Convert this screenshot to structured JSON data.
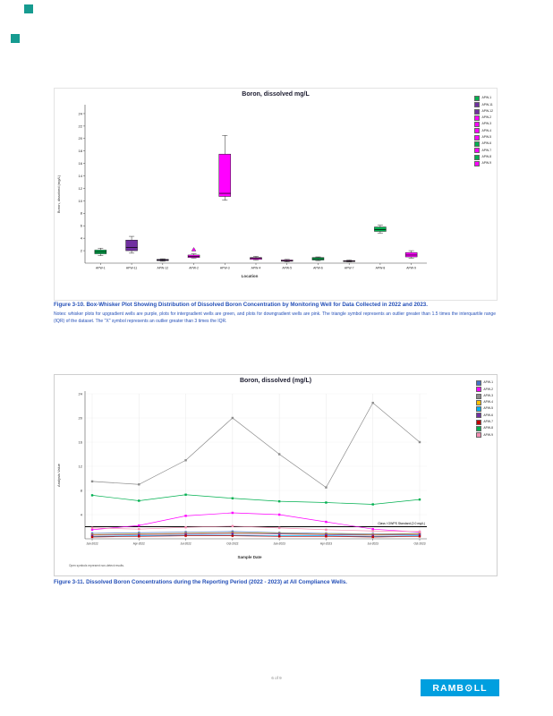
{
  "page": {
    "footer": "6 of 9",
    "accent_color": "#169B90"
  },
  "logo": {
    "text": "RAMBOLL",
    "left": "RAMB",
    "o": "⊙",
    "right": "LL",
    "background": "#009FDF"
  },
  "figure_3_10": {
    "caption": "Figure 3-10. Box-Whisker Plot Showing Distribution of Dissolved Boron Concentration by Monitoring Well for Data Collected in 2022 and 2023.",
    "notes": "Notes: whisker plots for upgradient wells are purple, plots for intergradient wells are green, and plots for downgradient wells are pink. The triangle symbol represents an outlier greater than 1.5 times the interquartile range (IQR) of the dataset. The \"X\" symbol represents an outlier greater than 3 times the IQR."
  },
  "figure_3_11": {
    "caption": "Figure 3-11. Dissolved Boron Concentrations during the Reporting Period (2022 - 2023) at All Compliance Wells."
  },
  "chart_data": [
    {
      "type": "box",
      "title": "Boron, dissolved mg/L",
      "xlabel": "Location",
      "ylabel": "Boron, dissolved (mg/L)",
      "ylim": [
        0,
        25
      ],
      "yticks": [
        2,
        4,
        6,
        8,
        10,
        12,
        14,
        16,
        18,
        20,
        22,
        24
      ],
      "legend_position": "top-right",
      "grid": false,
      "categories": [
        "APW-1",
        "APW-11",
        "APW-12",
        "APW-2",
        "APW-3",
        "APW-4",
        "APW-5",
        "APW-6",
        "APW-7",
        "APW-8",
        "APW-9"
      ],
      "well_group_colors": {
        "upgradient": "#7030A0",
        "intergradient": "#00B050",
        "downgradient": "#FF00FF"
      },
      "boxes": [
        {
          "label": "APW-1",
          "color": "#00B050",
          "low": 1.2,
          "q1": 1.5,
          "median": 1.8,
          "q3": 2.1,
          "high": 2.4
        },
        {
          "label": "APW-11",
          "color": "#7030A0",
          "low": 1.6,
          "q1": 2.0,
          "median": 2.5,
          "q3": 3.7,
          "high": 4.3
        },
        {
          "label": "APW-12",
          "color": "#7030A0",
          "low": 0.3,
          "q1": 0.4,
          "median": 0.5,
          "q3": 0.6,
          "high": 0.7
        },
        {
          "label": "APW-2",
          "color": "#FF00FF",
          "low": 0.8,
          "q1": 0.9,
          "median": 1.1,
          "q3": 1.3,
          "high": 1.5,
          "outliers": [
            {
              "symbol": "triangle",
              "value": 2.2
            }
          ]
        },
        {
          "label": "APW-3",
          "color": "#FF00FF",
          "low": 10.1,
          "q1": 10.7,
          "median": 11.2,
          "q3": 17.5,
          "high": 20.5
        },
        {
          "label": "APW-4",
          "color": "#FF00FF",
          "low": 0.5,
          "q1": 0.6,
          "median": 0.8,
          "q3": 0.9,
          "high": 1.1
        },
        {
          "label": "APW-5",
          "color": "#FF00FF",
          "low": 0.2,
          "q1": 0.3,
          "median": 0.4,
          "q3": 0.5,
          "high": 0.6
        },
        {
          "label": "APW-6",
          "color": "#00B050",
          "low": 0.4,
          "q1": 0.5,
          "median": 0.7,
          "q3": 0.9,
          "high": 1.0
        },
        {
          "label": "APW-7",
          "color": "#FF00FF",
          "low": 0.2,
          "q1": 0.3,
          "median": 0.3,
          "q3": 0.4,
          "high": 0.5
        },
        {
          "label": "APW-8",
          "color": "#00B050",
          "low": 4.8,
          "q1": 5.1,
          "median": 5.4,
          "q3": 5.8,
          "high": 6.1
        },
        {
          "label": "APW-9",
          "color": "#FF00FF",
          "low": 0.8,
          "q1": 1.0,
          "median": 1.3,
          "q3": 1.7,
          "high": 2.0
        }
      ]
    },
    {
      "type": "line",
      "title": "Boron, dissolved (mg/L)",
      "xlabel": "Sample Date",
      "ylabel": "Analysis Value",
      "ylim": [
        0,
        24
      ],
      "yticks": [
        4,
        8,
        12,
        16,
        20,
        24
      ],
      "grid": true,
      "legend_position": "top-right",
      "x": [
        "Jan-2022",
        "Apr-2022",
        "Jul-2022",
        "Oct-2022",
        "Jan-2023",
        "Apr-2023",
        "Jul-2023",
        "Oct-2023"
      ],
      "reference_line": {
        "label": "Class I GWPS Standard (2.0 mg/L)",
        "value": 2.0,
        "color": "#000000"
      },
      "footnote": "Open symbols represent non-detect results.",
      "series": [
        {
          "name": "APW-1",
          "color": "#4472C4",
          "values": [
            0.9,
            1.0,
            1.1,
            1.2,
            1.0,
            0.9,
            0.8,
            0.9
          ]
        },
        {
          "name": "APW-2",
          "color": "#FF00FF",
          "values": [
            1.5,
            2.2,
            3.8,
            4.3,
            4.0,
            2.8,
            1.6,
            1.1
          ]
        },
        {
          "name": "APW-3",
          "color": "#8C8C8C",
          "values": [
            9.5,
            9.0,
            13.0,
            20.0,
            14.0,
            8.5,
            22.5,
            16.0
          ]
        },
        {
          "name": "APW-4",
          "color": "#FFC000",
          "values": [
            0.7,
            0.8,
            0.9,
            1.0,
            0.9,
            0.8,
            0.7,
            0.8
          ]
        },
        {
          "name": "APW-5",
          "color": "#00B0F0",
          "values": [
            0.4,
            0.5,
            0.6,
            0.6,
            0.5,
            0.5,
            0.4,
            0.5
          ]
        },
        {
          "name": "APW-6",
          "color": "#7030A0",
          "values": [
            0.6,
            0.7,
            0.8,
            0.9,
            0.8,
            0.7,
            0.6,
            0.7
          ]
        },
        {
          "name": "APW-7",
          "color": "#C00000",
          "values": [
            0.3,
            0.4,
            0.5,
            0.5,
            0.4,
            0.4,
            0.3,
            0.4
          ]
        },
        {
          "name": "APW-8",
          "color": "#00B050",
          "values": [
            7.2,
            6.3,
            7.3,
            6.7,
            6.2,
            6.0,
            5.7,
            6.5
          ]
        },
        {
          "name": "APW-9",
          "color": "#F28CB1",
          "values": [
            1.8,
            1.6,
            1.9,
            2.1,
            1.8,
            1.5,
            1.3,
            1.2
          ]
        }
      ]
    }
  ]
}
